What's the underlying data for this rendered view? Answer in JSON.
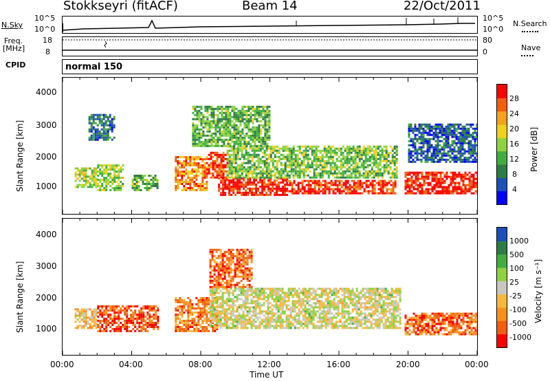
{
  "header": {
    "station": "Stokkseyri (fitACF)",
    "beam": "Beam 14",
    "date": "22/Oct/2011"
  },
  "summary": {
    "nsky_label": "N.Sky",
    "nsearch_label": "N.Search",
    "nsky_ticks": [
      "10^5",
      "10^0"
    ],
    "nsearch_ticks": [
      "10^5",
      "10^0"
    ],
    "freq_label": "Freq.",
    "freq_unit": "[MHz]",
    "freq_ticks": [
      "18",
      "8"
    ],
    "nave_label": "Nave",
    "nave_ticks": [
      "80",
      "0"
    ],
    "cpid_label": "CPID",
    "cpid_value": "normal 150"
  },
  "chart_data": [
    {
      "type": "heatmap",
      "name": "power",
      "ylabel": "Slant Range [km]",
      "ylim": [
        180,
        4500
      ],
      "yticks": [
        "4000",
        "3000",
        "2000",
        "1000"
      ],
      "colorbar_label": "Power [dB]",
      "colorbar_ticks": [
        "28",
        "24",
        "20",
        "16",
        "12",
        "8",
        "4"
      ],
      "colors": [
        "#0000ff",
        "#1d4fb8",
        "#2f7b45",
        "#3fae3f",
        "#8fd23f",
        "#f0d020",
        "#f8a020",
        "#f06010",
        "#ff0000"
      ],
      "bands": [
        {
          "t": [
            0.7,
            2.0
          ],
          "r": [
            1000,
            1600
          ],
          "level": 0.55
        },
        {
          "t": [
            2.0,
            3.5
          ],
          "r": [
            900,
            1700
          ],
          "level": 0.5
        },
        {
          "t": [
            4.0,
            5.5
          ],
          "r": [
            900,
            1400
          ],
          "level": 0.4
        },
        {
          "t": [
            6.5,
            8.3
          ],
          "r": [
            900,
            2000
          ],
          "level": 0.75
        },
        {
          "t": [
            8.3,
            9.5
          ],
          "r": [
            1300,
            2100
          ],
          "level": 0.9
        },
        {
          "t": [
            9.0,
            13.0
          ],
          "r": [
            750,
            1300
          ],
          "level": 0.95
        },
        {
          "t": [
            13.0,
            19.3
          ],
          "r": [
            800,
            1200
          ],
          "level": 0.9
        },
        {
          "t": [
            9.5,
            19.3
          ],
          "r": [
            1300,
            2300
          ],
          "level": 0.45
        },
        {
          "t": [
            19.8,
            24.0
          ],
          "r": [
            800,
            1500
          ],
          "level": 0.95
        },
        {
          "t": [
            1.5,
            3.0
          ],
          "r": [
            2500,
            3300
          ],
          "level": 0.25
        },
        {
          "t": [
            7.5,
            12.0
          ],
          "r": [
            2300,
            3600
          ],
          "level": 0.4
        },
        {
          "t": [
            20.0,
            24.0
          ],
          "r": [
            1800,
            3000
          ],
          "level": 0.2
        }
      ]
    },
    {
      "type": "heatmap",
      "name": "velocity",
      "ylabel": "Slant Range [km]",
      "ylim": [
        180,
        4500
      ],
      "yticks": [
        "4000",
        "3000",
        "2000",
        "1000"
      ],
      "colorbar_label": "Velocity [m s⁻¹]",
      "colorbar_ticks": [
        "1000",
        "500",
        "100",
        "25",
        "-25",
        "-100",
        "-500",
        "-1000"
      ],
      "colors": [
        "#ff0000",
        "#f06010",
        "#f89020",
        "#f8b840",
        "#c8c8c0",
        "#8fd23f",
        "#3fae3f",
        "#2f7b45",
        "#1d4fb8"
      ],
      "bands": [
        {
          "t": [
            0.7,
            2.0
          ],
          "r": [
            1000,
            1600
          ],
          "level": 0.4
        },
        {
          "t": [
            2.0,
            5.5
          ],
          "r": [
            900,
            1700
          ],
          "level": 0.15
        },
        {
          "t": [
            6.5,
            9.0
          ],
          "r": [
            900,
            2000
          ],
          "level": 0.25
        },
        {
          "t": [
            8.5,
            19.5
          ],
          "r": [
            1000,
            2300
          ],
          "level": 0.5
        },
        {
          "t": [
            19.8,
            24.0
          ],
          "r": [
            800,
            1500
          ],
          "level": 0.2
        },
        {
          "t": [
            8.5,
            11.0
          ],
          "r": [
            2300,
            3500
          ],
          "level": 0.2
        }
      ]
    }
  ],
  "xaxis": {
    "label": "Time UT",
    "ticks": [
      "00:00",
      "04:00",
      "08:00",
      "12:00",
      "16:00",
      "20:00",
      "00:00"
    ]
  }
}
